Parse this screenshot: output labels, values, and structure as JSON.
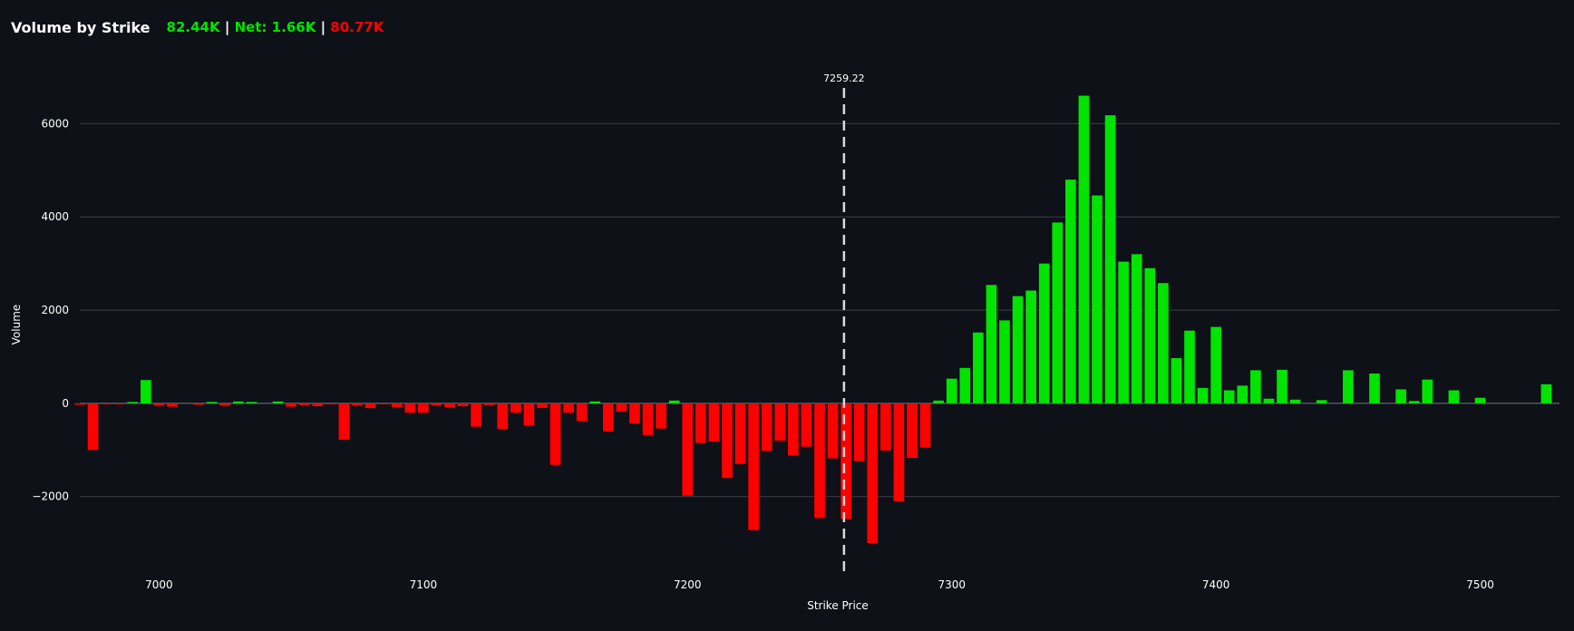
{
  "header": {
    "title": "Volume by Strike",
    "calls": "82.44K",
    "net": "Net: 1.66K",
    "puts": "80.77K",
    "separator": "|"
  },
  "colors": {
    "background": "#0e1117",
    "positive": "#00e400",
    "negative": "#ff0000",
    "grid": "#3b4048",
    "text": "#ffffff",
    "refline": "#d9d9d9"
  },
  "chart_data": {
    "type": "bar",
    "xlabel": "Strike Price",
    "ylabel": "Volume",
    "xlim": [
      6970,
      7530
    ],
    "ylim": [
      -3600,
      7000
    ],
    "x_ticks": [
      7000,
      7100,
      7200,
      7300,
      7400,
      7500
    ],
    "y_ticks": [
      -2000,
      0,
      2000,
      4000,
      6000
    ],
    "y_tick_labels": [
      "−2000",
      "0",
      "2000",
      "4000",
      "6000"
    ],
    "grid": true,
    "reference_line": {
      "x": 7259.22,
      "label": "7259.22"
    },
    "bar_width": 4,
    "x": [
      6970,
      6975,
      6980,
      6985,
      6990,
      6995,
      7000,
      7005,
      7010,
      7015,
      7020,
      7025,
      7030,
      7035,
      7040,
      7045,
      7050,
      7055,
      7060,
      7065,
      7070,
      7075,
      7080,
      7085,
      7090,
      7095,
      7100,
      7105,
      7110,
      7115,
      7120,
      7125,
      7130,
      7135,
      7140,
      7145,
      7150,
      7155,
      7160,
      7165,
      7170,
      7175,
      7180,
      7185,
      7190,
      7195,
      7200,
      7205,
      7210,
      7215,
      7220,
      7225,
      7230,
      7235,
      7240,
      7245,
      7250,
      7255,
      7260,
      7265,
      7270,
      7275,
      7280,
      7285,
      7290,
      7295,
      7300,
      7305,
      7310,
      7315,
      7320,
      7325,
      7330,
      7335,
      7340,
      7345,
      7350,
      7355,
      7360,
      7365,
      7370,
      7375,
      7380,
      7385,
      7390,
      7395,
      7400,
      7405,
      7410,
      7415,
      7420,
      7425,
      7430,
      7435,
      7440,
      7445,
      7450,
      7455,
      7460,
      7465,
      7470,
      7475,
      7480,
      7485,
      7490,
      7495,
      7500,
      7505,
      7510,
      7515,
      7520,
      7525
    ],
    "values": [
      -30,
      -1000,
      -20,
      -20,
      30,
      500,
      -50,
      -70,
      0,
      -30,
      30,
      -50,
      40,
      30,
      0,
      40,
      -70,
      -40,
      -60,
      -20,
      -780,
      -50,
      -100,
      -20,
      -80,
      -200,
      -200,
      -50,
      -80,
      -60,
      -500,
      -40,
      -550,
      -200,
      -480,
      -100,
      -1320,
      -200,
      -380,
      40,
      -600,
      -180,
      -430,
      -680,
      -540,
      60,
      -1980,
      -850,
      -820,
      -1600,
      -1300,
      -2720,
      -1020,
      -800,
      -1120,
      -930,
      -2460,
      -1180,
      -2480,
      -1240,
      -3000,
      -1010,
      -2100,
      -1170,
      -950,
      60,
      530,
      760,
      1520,
      2540,
      1780,
      2300,
      2420,
      3000,
      3880,
      4800,
      6600,
      4460,
      6180,
      3040,
      3200,
      2900,
      2580,
      970,
      1560,
      330,
      1640,
      280,
      380,
      710,
      100,
      720,
      80,
      0,
      70,
      0,
      710,
      0,
      640,
      0,
      300,
      50,
      510,
      0,
      280,
      0,
      120,
      0,
      0,
      0,
      0,
      410
    ]
  }
}
